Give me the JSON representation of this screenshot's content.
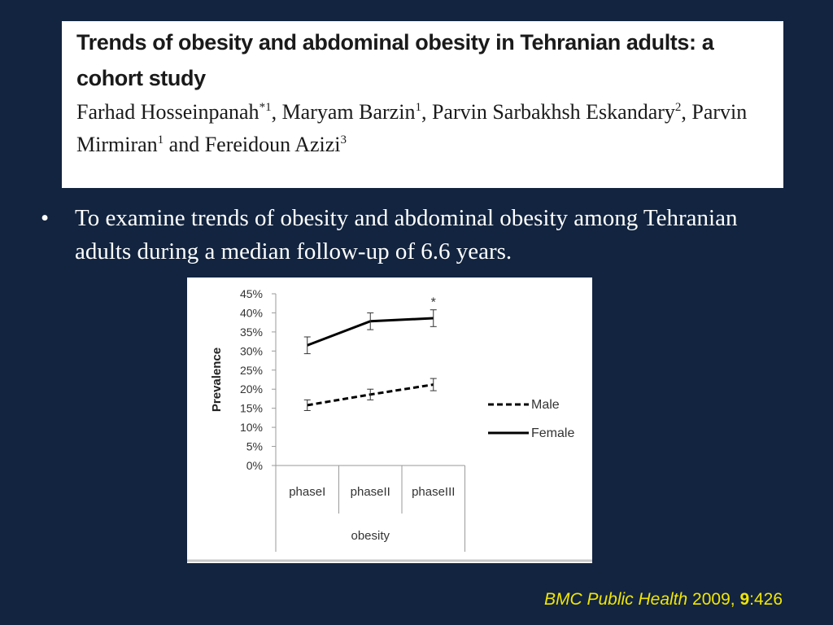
{
  "paper": {
    "title": "Trends of obesity and abdominal obesity in Tehranian adults: a cohort study",
    "authors": [
      {
        "name": "Farhad Hosseinpanah",
        "sup": "*1",
        "sep": ", "
      },
      {
        "name": "Maryam Barzin",
        "sup": "1",
        "sep": ", "
      },
      {
        "name": "Parvin Sarbakhsh Eskandary",
        "sup": "2",
        "sep": ", "
      },
      {
        "name": "Parvin Mirmiran",
        "sup": "1",
        "sep": " and "
      },
      {
        "name": "Fereidoun Azizi",
        "sup": "3",
        "sep": ""
      }
    ]
  },
  "bullet": {
    "marker": "•",
    "text": "To examine trends of obesity and abdominal obesity among Tehranian adults during a median follow-up of 6.6 years."
  },
  "chart_data": {
    "type": "line",
    "ylabel": "Prevalence",
    "xgroup_label": "obesity",
    "categories": [
      "phaseI",
      "phaseII",
      "phaseIII"
    ],
    "yticks": [
      "0%",
      "5%",
      "10%",
      "15%",
      "20%",
      "25%",
      "30%",
      "35%",
      "40%",
      "45%"
    ],
    "ylim": [
      0,
      45
    ],
    "series": [
      {
        "name": "Male",
        "style": "dashed",
        "values": [
          15.8,
          18.6,
          21.2
        ],
        "error": [
          1.4,
          1.4,
          1.6
        ]
      },
      {
        "name": "Female",
        "style": "solid",
        "values": [
          31.5,
          37.8,
          38.6
        ],
        "error": [
          2.2,
          2.2,
          2.2
        ]
      }
    ],
    "annotations": [
      {
        "text": "*",
        "category": "phaseIII"
      }
    ],
    "legend": "right",
    "line_color": "#000000"
  },
  "citation": {
    "journal": "BMC Public Health",
    "year": "2009,",
    "volume": "9",
    "pages": ":426",
    "color": "#f2e600"
  }
}
